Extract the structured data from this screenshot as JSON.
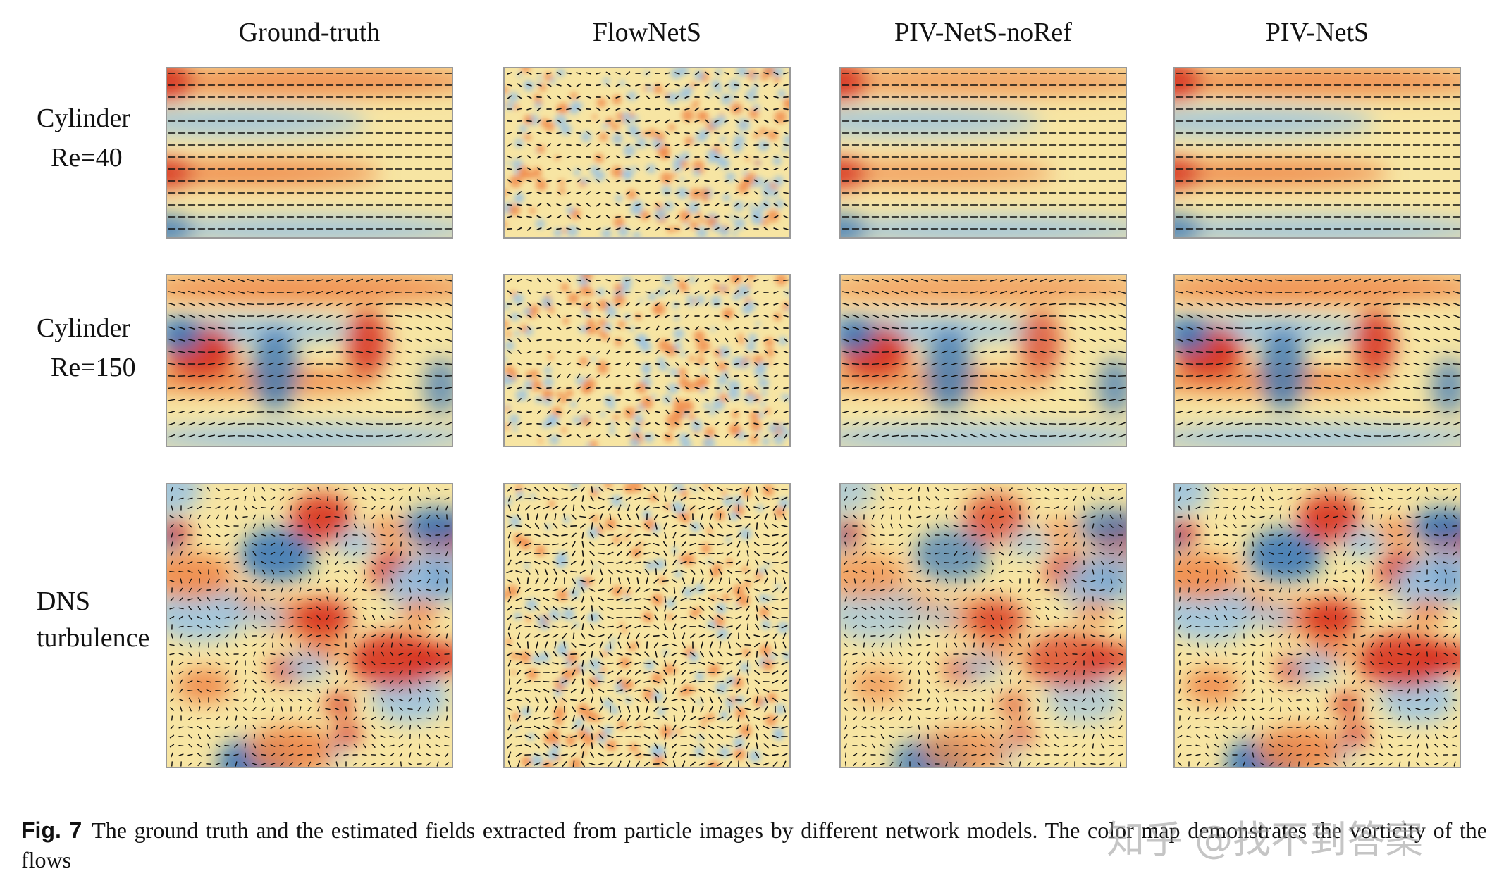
{
  "figure": {
    "columns": [
      "Ground-truth",
      "FlowNetS",
      "PIV-NetS-noRef",
      "PIV-NetS"
    ],
    "rows": [
      {
        "label_lines": [
          "Cylinder",
          "Re=40"
        ]
      },
      {
        "label_lines": [
          "Cylinder",
          "Re=150"
        ]
      },
      {
        "label_lines": [
          "DNS",
          "turbulence"
        ]
      }
    ],
    "caption": {
      "label": "Fig. 7",
      "text": "The ground truth and the estimated fields extracted from particle images by different network models. The color map demonstrates the vorticity of the flows"
    },
    "watermark": "知乎 @找不到答案"
  }
}
